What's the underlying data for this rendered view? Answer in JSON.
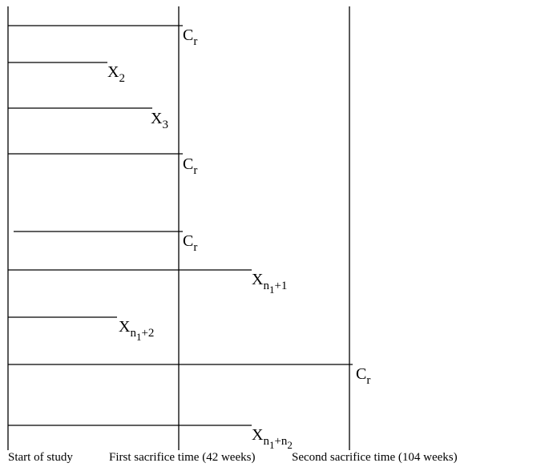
{
  "labels": {
    "cr": {
      "base": "C",
      "sub": "r"
    },
    "x2": {
      "base": "X",
      "sub": "2"
    },
    "x3": {
      "base": "X",
      "sub": "3"
    },
    "xn1p1": {
      "base": "X",
      "sub": "n",
      "subsub": "1",
      "suffix": "+1"
    },
    "xn1p2": {
      "base": "X",
      "sub": "n",
      "subsub": "1",
      "suffix": "+2"
    },
    "xn1pn2": {
      "base": "X",
      "sub": "n",
      "subsub": "1",
      "suffix": "+n",
      "suffix_sub": "2"
    }
  },
  "timeline": {
    "start": "Start of study",
    "first": "First sacrifice time (42 weeks)",
    "second": "Second sacrifice time  (104 weeks)"
  }
}
